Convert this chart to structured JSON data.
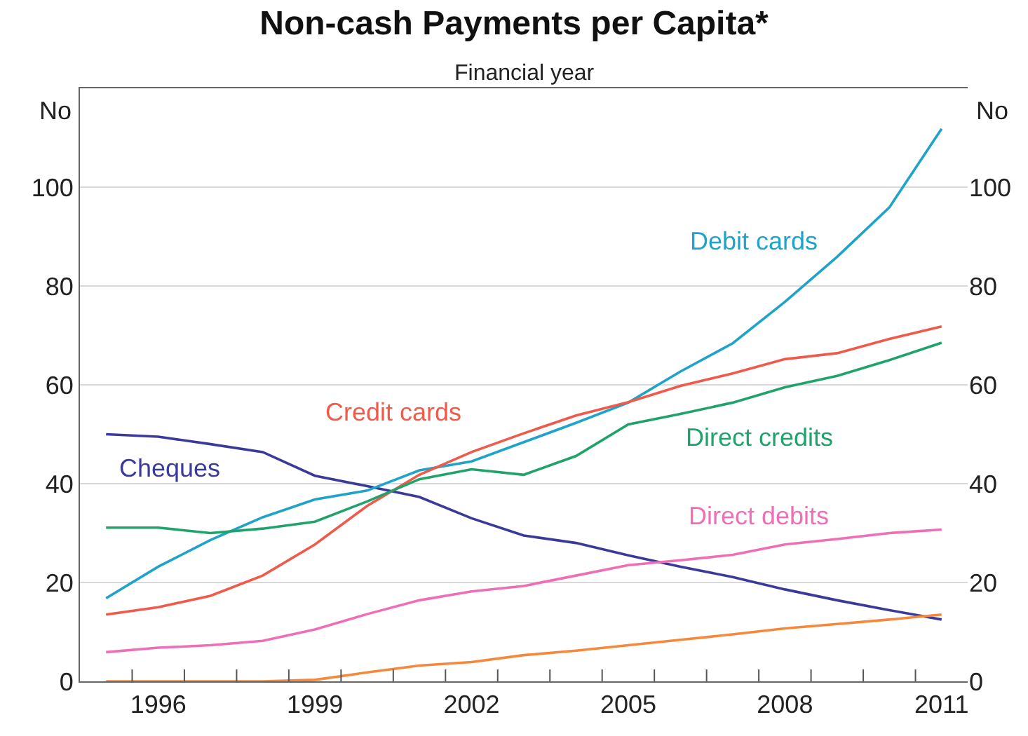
{
  "chart_data": {
    "type": "line",
    "title": "Non-cash Payments per Capita*",
    "subtitle": "Financial year",
    "ylabel": "No",
    "y2label": "No",
    "x": [
      1995,
      1996,
      1997,
      1998,
      1999,
      2000,
      2001,
      2002,
      2003,
      2004,
      2005,
      2006,
      2007,
      2008,
      2009,
      2010,
      2011
    ],
    "series": [
      {
        "name": "Cheques",
        "color": "#3a3a9a",
        "values": [
          50,
          49.5,
          48,
          46.4,
          41.6,
          39.5,
          37.3,
          33,
          29.5,
          28,
          25.5,
          23.2,
          21.1,
          18.6,
          16.4,
          14.4,
          12.5
        ]
      },
      {
        "name": "Debit cards",
        "color": "#1fa3c8",
        "values": [
          16.8,
          23.2,
          28.6,
          33.2,
          36.8,
          38.6,
          42.7,
          44.5,
          48.4,
          52.3,
          56.4,
          62.7,
          68.4,
          76.8,
          85.9,
          95.9,
          111.8
        ]
      },
      {
        "name": "Credit cards",
        "color": "#ef5a4a",
        "values": [
          13.5,
          15,
          17.3,
          21.4,
          27.7,
          35.5,
          41.8,
          46.4,
          50.2,
          53.8,
          56.5,
          59.8,
          62.3,
          65.2,
          66.4,
          69.3,
          71.8
        ]
      },
      {
        "name": "Direct credits",
        "color": "#1fa36a",
        "values": [
          31.1,
          31.1,
          30,
          30.9,
          32.3,
          36.4,
          40.9,
          42.9,
          41.8,
          45.6,
          52,
          54.1,
          56.4,
          59.5,
          61.8,
          65,
          68.5
        ]
      },
      {
        "name": "Direct debits",
        "color": "#ee6fb5",
        "values": [
          5.9,
          6.8,
          7.3,
          8.2,
          10.5,
          13.6,
          16.4,
          18.2,
          19.3,
          21.4,
          23.5,
          24.5,
          25.6,
          27.7,
          28.8,
          30,
          30.7
        ]
      },
      {
        "color": "#f5883a",
        "values": [
          0,
          0,
          0,
          0,
          0.3,
          1.8,
          3.2,
          3.9,
          5.3,
          6.2,
          7.3,
          8.4,
          9.5,
          10.7,
          11.6,
          12.5,
          13.5
        ]
      }
    ],
    "xlim": [
      1994.5,
      2011.5
    ],
    "xticks": [
      {
        "value": 1995.5,
        "label": null
      },
      1996,
      {
        "value": 1996.5,
        "label": null
      },
      {
        "value": 1997.5,
        "label": null
      },
      {
        "value": 1998.5,
        "label": null
      },
      1999,
      {
        "value": 1999.5,
        "label": null
      },
      {
        "value": 2000.5,
        "label": null
      },
      {
        "value": 2001.5,
        "label": null
      },
      2002,
      {
        "value": 2002.5,
        "label": null
      },
      {
        "value": 2003.5,
        "label": null
      },
      {
        "value": 2004.5,
        "label": null
      },
      2005,
      {
        "value": 2005.5,
        "label": null
      },
      {
        "value": 2006.5,
        "label": null
      },
      {
        "value": 2007.5,
        "label": null
      },
      2008,
      {
        "value": 2008.5,
        "label": null
      },
      {
        "value": 2009.5,
        "label": null
      },
      {
        "value": 2010.5,
        "label": null
      },
      2011
    ],
    "ylim": [
      0,
      120
    ],
    "yticks": [
      0,
      20,
      40,
      60,
      80,
      100
    ],
    "y2lim": [
      0,
      120
    ],
    "y2ticks": [
      0,
      20,
      40,
      60,
      80,
      100
    ],
    "grid": "y",
    "legend": false,
    "marker": "none",
    "line_style": "solid"
  }
}
